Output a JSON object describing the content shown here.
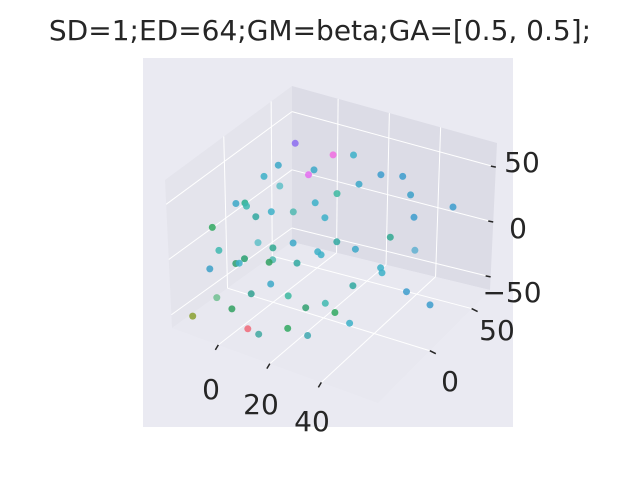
{
  "colors": {
    "figure_bg": "#ffffff",
    "axes_bg": "#eaeaf2",
    "pane_left": "#e4e4ec",
    "pane_right": "#dcdce6",
    "pane_floor": "#e8e8f0",
    "grid": "#ffffff",
    "text": "#262626"
  },
  "chart_data": {
    "type": "scatter",
    "title": "SD=1;ED=64;GM=beta;GA=[0.5, 0.5];",
    "projection": "3d",
    "grid": true,
    "xlabel": "",
    "ylabel": "",
    "zlabel": "",
    "xlim": [
      -18,
      62
    ],
    "ylim": [
      -62,
      72
    ],
    "zlim": [
      -62,
      72
    ],
    "x_ticks": [
      0,
      20,
      40
    ],
    "y_ticks": [
      0,
      50
    ],
    "z_ticks": [
      -50,
      0,
      50
    ],
    "x_tick_labels": [
      "0",
      "20",
      "40"
    ],
    "y_tick_labels": [
      "0",
      "50"
    ],
    "z_tick_labels": [
      "−50",
      "0",
      "50"
    ],
    "points": [
      {
        "x": -10,
        "y": 20,
        "z": 30,
        "color": "#3cb0c8"
      },
      {
        "x": -8,
        "y": 30,
        "z": 35,
        "color": "#3ca8c8"
      },
      {
        "x": -5,
        "y": 40,
        "z": 50,
        "color": "#8c6cf0"
      },
      {
        "x": 2,
        "y": 35,
        "z": 30,
        "color": "#e46cf0"
      },
      {
        "x": 8,
        "y": 45,
        "z": 45,
        "color": "#f06ce0"
      },
      {
        "x": -12,
        "y": -5,
        "z": 20,
        "color": "#3ca8c8"
      },
      {
        "x": -14,
        "y": 10,
        "z": 10,
        "color": "#28b090"
      },
      {
        "x": -16,
        "y": -20,
        "z": 5,
        "color": "#30a860"
      },
      {
        "x": -6,
        "y": -10,
        "z": 25,
        "color": "#40b8b0"
      },
      {
        "x": 0,
        "y": 0,
        "z": 18,
        "color": "#3cb0c8"
      },
      {
        "x": 5,
        "y": 10,
        "z": 15,
        "color": "#50b8b0"
      },
      {
        "x": 10,
        "y": 20,
        "z": 20,
        "color": "#3cb0c8"
      },
      {
        "x": 15,
        "y": 30,
        "z": 25,
        "color": "#3cb8a0"
      },
      {
        "x": 20,
        "y": 40,
        "z": 30,
        "color": "#3ca8c8"
      },
      {
        "x": 25,
        "y": 50,
        "z": 35,
        "color": "#3c9ccc"
      },
      {
        "x": 30,
        "y": 60,
        "z": 30,
        "color": "#3c9ccc"
      },
      {
        "x": 35,
        "y": 55,
        "z": 20,
        "color": "#3ca0c8"
      },
      {
        "x": 40,
        "y": 45,
        "z": 10,
        "color": "#3c9ccc"
      },
      {
        "x": 50,
        "y": 60,
        "z": 15,
        "color": "#3c9ccc"
      },
      {
        "x": 22,
        "y": 10,
        "z": 0,
        "color": "#30a8a0"
      },
      {
        "x": 18,
        "y": 0,
        "z": -5,
        "color": "#3cb0c8"
      },
      {
        "x": 12,
        "y": -10,
        "z": 5,
        "color": "#3ca8c8"
      },
      {
        "x": 6,
        "y": -20,
        "z": -10,
        "color": "#30a060"
      },
      {
        "x": 0,
        "y": -30,
        "z": -5,
        "color": "#28a070"
      },
      {
        "x": -4,
        "y": -25,
        "z": -15,
        "color": "#3cb0c8"
      },
      {
        "x": -9,
        "y": -15,
        "z": -25,
        "color": "#30a070"
      },
      {
        "x": -12,
        "y": -35,
        "z": -20,
        "color": "#3ca0c8"
      },
      {
        "x": 2,
        "y": -5,
        "z": -20,
        "color": "#50b8b0"
      },
      {
        "x": 8,
        "y": 5,
        "z": -25,
        "color": "#30a8a0"
      },
      {
        "x": 14,
        "y": 15,
        "z": -20,
        "color": "#3cb0c8"
      },
      {
        "x": 24,
        "y": 25,
        "z": -15,
        "color": "#3ca8c8"
      },
      {
        "x": 30,
        "y": 5,
        "z": -30,
        "color": "#30a8a0"
      },
      {
        "x": 38,
        "y": 15,
        "z": -20,
        "color": "#3cb0c8"
      },
      {
        "x": 46,
        "y": 20,
        "z": -35,
        "color": "#3c9ccc"
      },
      {
        "x": 44,
        "y": 35,
        "z": -10,
        "color": "#60b0d0"
      },
      {
        "x": 36,
        "y": 30,
        "z": 0,
        "color": "#30a890"
      },
      {
        "x": 28,
        "y": -10,
        "z": -45,
        "color": "#30a860"
      },
      {
        "x": 20,
        "y": -20,
        "z": -40,
        "color": "#30a070"
      },
      {
        "x": 15,
        "y": -25,
        "z": -30,
        "color": "#3cb8a0"
      },
      {
        "x": 10,
        "y": -30,
        "z": -20,
        "color": "#3ca8c8"
      },
      {
        "x": 4,
        "y": -35,
        "z": -30,
        "color": "#30a090"
      },
      {
        "x": -2,
        "y": -40,
        "z": -45,
        "color": "#30a060"
      },
      {
        "x": -6,
        "y": -45,
        "z": -35,
        "color": "#70c090"
      },
      {
        "x": -14,
        "y": -50,
        "z": -55,
        "color": "#8aa030"
      },
      {
        "x": 4,
        "y": -40,
        "z": -58,
        "color": "#f06878"
      },
      {
        "x": 10,
        "y": -45,
        "z": -55,
        "color": "#40a8a0"
      },
      {
        "x": 24,
        "y": -30,
        "z": -55,
        "color": "#40a8b0"
      },
      {
        "x": 32,
        "y": -5,
        "z": -55,
        "color": "#3cb0c8"
      },
      {
        "x": 52,
        "y": 30,
        "z": -50,
        "color": "#3c9ccc"
      },
      {
        "x": 18,
        "y": -35,
        "z": -50,
        "color": "#30a860"
      },
      {
        "x": 26,
        "y": -15,
        "z": -35,
        "color": "#40b8b0"
      },
      {
        "x": 34,
        "y": 25,
        "z": -25,
        "color": "#3cb0c8"
      },
      {
        "x": 12,
        "y": 25,
        "z": 5,
        "color": "#3cb0c8"
      },
      {
        "x": 6,
        "y": 30,
        "z": 40,
        "color": "#3ca8c8"
      },
      {
        "x": -2,
        "y": 15,
        "z": 30,
        "color": "#60c0c8"
      },
      {
        "x": 16,
        "y": 45,
        "z": 50,
        "color": "#3cb0c8"
      },
      {
        "x": -8,
        "y": 5,
        "z": 5,
        "color": "#30a8a0"
      },
      {
        "x": 0,
        "y": -15,
        "z": 0,
        "color": "#60c0c8"
      },
      {
        "x": 4,
        "y": -10,
        "z": -5,
        "color": "#30a890"
      },
      {
        "x": -10,
        "y": -30,
        "z": -5,
        "color": "#40b8b0"
      }
    ]
  }
}
